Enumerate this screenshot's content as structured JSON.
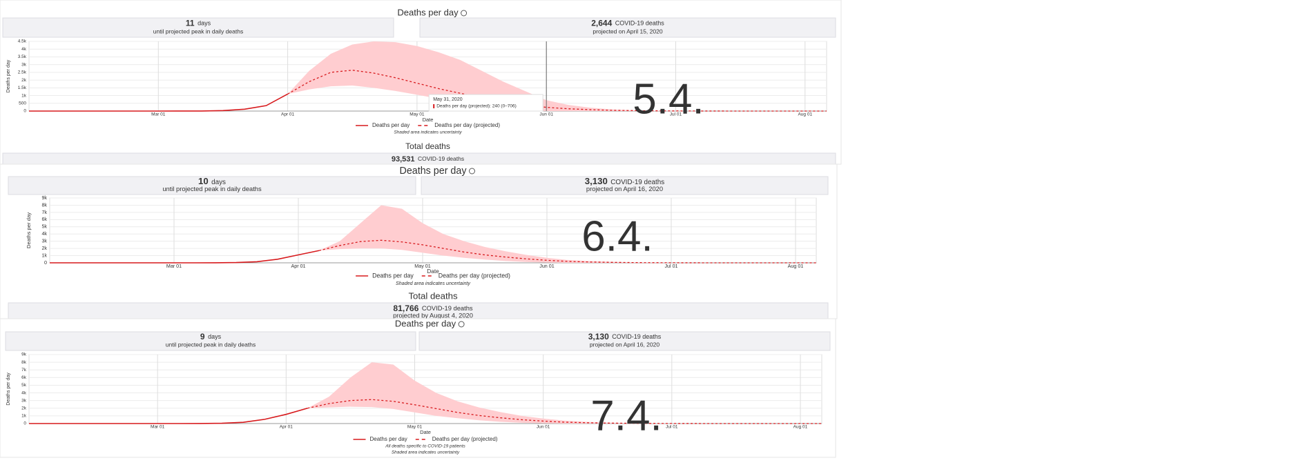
{
  "panels": [
    {
      "label": "5.4.",
      "title": "Deaths per day",
      "stats": [
        {
          "value": "11",
          "unit": "days",
          "caption": "until projected peak in daily deaths"
        },
        {
          "value": "2,644",
          "unit": "COVID-19 deaths",
          "caption": "projected on April 15, 2020"
        }
      ],
      "chart_data": {
        "type": "line",
        "y_label": "Deaths per day",
        "x_label": "Date",
        "categories": [
          null,
          null,
          null,
          null,
          null,
          null,
          "Mar 01",
          null,
          null,
          null,
          null,
          null,
          "Apr 01",
          null,
          null,
          null,
          null,
          null,
          "May 01",
          null,
          null,
          null,
          null,
          null,
          "Jun 01",
          null,
          null,
          null,
          null,
          null,
          "Jul 01",
          null,
          null,
          null,
          null,
          null,
          "Aug 01",
          null
        ],
        "series": [
          {
            "name": "Deaths per day",
            "color": "#d7191c",
            "style": "solid",
            "values": [
              0,
              0,
              0,
              0,
              0,
              0,
              0,
              1,
              4,
              30,
              120,
              350,
              1100,
              null,
              null,
              null,
              null,
              null,
              null,
              null,
              null,
              null,
              null,
              null,
              null,
              null,
              null,
              null,
              null,
              null,
              null,
              null,
              null,
              null,
              null,
              null,
              null,
              null
            ]
          },
          {
            "name": "Deaths per day (projected)",
            "color": "#d7191c",
            "style": "dashed",
            "values": [
              null,
              null,
              null,
              null,
              null,
              null,
              null,
              null,
              null,
              null,
              null,
              null,
              1100,
              1900,
              2500,
              2640,
              2450,
              2150,
              1800,
              1450,
              1150,
              850,
              600,
              400,
              240,
              150,
              90,
              50,
              30,
              15,
              8,
              4,
              2,
              1,
              0,
              0,
              0,
              0
            ]
          }
        ],
        "band": {
          "color": "#ffcdd0",
          "upper": [
            null,
            null,
            null,
            null,
            null,
            null,
            null,
            null,
            null,
            null,
            null,
            null,
            1100,
            2600,
            3700,
            4300,
            4500,
            4450,
            4200,
            3800,
            3300,
            2600,
            1900,
            1300,
            700,
            400,
            220,
            110,
            50,
            20,
            10,
            5,
            2,
            0,
            0,
            0,
            0,
            0
          ],
          "lower": [
            null,
            null,
            null,
            null,
            null,
            null,
            null,
            null,
            null,
            null,
            null,
            null,
            1100,
            1400,
            1600,
            1650,
            1500,
            1300,
            1050,
            800,
            550,
            350,
            200,
            80,
            0,
            0,
            0,
            0,
            0,
            0,
            0,
            0,
            0,
            0,
            0,
            0,
            0,
            0
          ]
        },
        "ylim": [
          0,
          4500
        ],
        "yticks": [
          0,
          500,
          {
            "value": 1000,
            "label": "1k"
          },
          {
            "value": 1500,
            "label": "1.5k"
          },
          {
            "value": 2000,
            "label": "2k"
          },
          {
            "value": 2500,
            "label": "2.5k"
          },
          {
            "value": 3000,
            "label": "3k"
          },
          {
            "value": 3500,
            "label": "3.5k"
          },
          {
            "value": 4000,
            "label": "4k"
          },
          {
            "value": 4500,
            "label": "4.5k"
          }
        ],
        "grid": true,
        "notes": [
          "Shaded area indicates uncertainty"
        ],
        "tooltip": {
          "title": "May 31, 2020",
          "text": "Deaths per day (projected):  240 (0–706)"
        }
      },
      "total": {
        "title": "Total deaths",
        "value": "93,531",
        "unit": "COVID-19 deaths"
      }
    },
    {
      "label": "6.4.",
      "title": "Deaths per day",
      "stats": [
        {
          "value": "10",
          "unit": "days",
          "caption": "until projected peak in daily deaths"
        },
        {
          "value": "3,130",
          "unit": "COVID-19 deaths",
          "caption": "projected on April 16, 2020"
        }
      ],
      "chart_data": {
        "type": "line",
        "y_label": "Deaths per day",
        "x_label": "Date",
        "categories": [
          null,
          null,
          null,
          null,
          null,
          null,
          "Mar 01",
          null,
          null,
          null,
          null,
          null,
          "Apr 01",
          null,
          null,
          null,
          null,
          null,
          "May 01",
          null,
          null,
          null,
          null,
          null,
          "Jun 01",
          null,
          null,
          null,
          null,
          null,
          "Jul 01",
          null,
          null,
          null,
          null,
          null,
          "Aug 01",
          null
        ],
        "series": [
          {
            "name": "Deaths per day",
            "color": "#d7191c",
            "style": "solid",
            "values": [
              0,
              0,
              0,
              0,
              0,
              0,
              0,
              1,
              5,
              40,
              150,
              500,
              1100,
              1700,
              null,
              null,
              null,
              null,
              null,
              null,
              null,
              null,
              null,
              null,
              null,
              null,
              null,
              null,
              null,
              null,
              null,
              null,
              null,
              null,
              null,
              null,
              null,
              null
            ]
          },
          {
            "name": "Deaths per day (projected)",
            "color": "#d7191c",
            "style": "dashed",
            "values": [
              null,
              null,
              null,
              null,
              null,
              null,
              null,
              null,
              null,
              null,
              null,
              null,
              null,
              1700,
              2400,
              2950,
              3130,
              2900,
              2500,
              2000,
              1500,
              1100,
              800,
              550,
              350,
              200,
              120,
              70,
              40,
              20,
              10,
              5,
              2,
              1,
              0,
              0,
              0,
              0
            ]
          }
        ],
        "band": {
          "color": "#ffcdd0",
          "upper": [
            null,
            null,
            null,
            null,
            null,
            null,
            null,
            null,
            null,
            null,
            null,
            null,
            null,
            1700,
            3000,
            5500,
            8000,
            7500,
            5500,
            4000,
            3000,
            2200,
            1600,
            1100,
            700,
            400,
            250,
            150,
            80,
            40,
            20,
            10,
            5,
            2,
            0,
            0,
            0,
            0
          ],
          "lower": [
            null,
            null,
            null,
            null,
            null,
            null,
            null,
            null,
            null,
            null,
            null,
            null,
            null,
            1700,
            1900,
            2000,
            2000,
            1800,
            1400,
            1000,
            700,
            450,
            250,
            120,
            40,
            0,
            0,
            0,
            0,
            0,
            0,
            0,
            0,
            0,
            0,
            0,
            0,
            0
          ]
        },
        "ylim": [
          0,
          9000
        ],
        "yticks": [
          0,
          {
            "value": 1000,
            "label": "1k"
          },
          {
            "value": 2000,
            "label": "2k"
          },
          {
            "value": 3000,
            "label": "3k"
          },
          {
            "value": 4000,
            "label": "4k"
          },
          {
            "value": 5000,
            "label": "5k"
          },
          {
            "value": 6000,
            "label": "6k"
          },
          {
            "value": 7000,
            "label": "7k"
          },
          {
            "value": 8000,
            "label": "8k"
          },
          {
            "value": 9000,
            "label": "9k"
          }
        ],
        "grid": true,
        "notes": [
          "Shaded area indicates uncertainty"
        ]
      },
      "total": {
        "title": "Total deaths",
        "value": "81,766",
        "unit": "COVID-19 deaths",
        "caption": "projected by August 4, 2020"
      }
    },
    {
      "label": "7.4.",
      "title": "Deaths per day",
      "stats": [
        {
          "value": "9",
          "unit": "days",
          "caption": "until projected peak in daily deaths"
        },
        {
          "value": "3,130",
          "unit": "COVID-19 deaths",
          "caption": "projected on April 16, 2020"
        }
      ],
      "chart_data": {
        "type": "line",
        "y_label": "Deaths per day",
        "x_label": "Date",
        "categories": [
          null,
          null,
          null,
          null,
          null,
          null,
          "Mar 01",
          null,
          null,
          null,
          null,
          null,
          "Apr 01",
          null,
          null,
          null,
          null,
          null,
          "May 01",
          null,
          null,
          null,
          null,
          null,
          "Jun 01",
          null,
          null,
          null,
          null,
          null,
          "Jul 01",
          null,
          null,
          null,
          null,
          null,
          "Aug 01",
          null
        ],
        "series": [
          {
            "name": "Deaths per day",
            "color": "#d7191c",
            "style": "solid",
            "values": [
              0,
              0,
              0,
              0,
              0,
              0,
              0,
              1,
              5,
              40,
              160,
              550,
              1200,
              2000,
              null,
              null,
              null,
              null,
              null,
              null,
              null,
              null,
              null,
              null,
              null,
              null,
              null,
              null,
              null,
              null,
              null,
              null,
              null,
              null,
              null,
              null,
              null,
              null
            ]
          },
          {
            "name": "Deaths per day (projected)",
            "color": "#d7191c",
            "style": "dashed",
            "values": [
              null,
              null,
              null,
              null,
              null,
              null,
              null,
              null,
              null,
              null,
              null,
              null,
              null,
              2000,
              2600,
              3000,
              3130,
              2900,
              2450,
              1950,
              1450,
              1050,
              750,
              500,
              320,
              180,
              110,
              60,
              35,
              18,
              9,
              4,
              2,
              1,
              0,
              0,
              0,
              0
            ]
          }
        ],
        "band": {
          "color": "#ffcdd0",
          "upper": [
            null,
            null,
            null,
            null,
            null,
            null,
            null,
            null,
            null,
            null,
            null,
            null,
            null,
            2000,
            3500,
            6000,
            8000,
            7700,
            5600,
            4000,
            2900,
            2100,
            1500,
            1000,
            650,
            380,
            230,
            130,
            70,
            35,
            18,
            9,
            4,
            2,
            0,
            0,
            0,
            0
          ],
          "lower": [
            null,
            null,
            null,
            null,
            null,
            null,
            null,
            null,
            null,
            null,
            null,
            null,
            null,
            2000,
            2100,
            2200,
            2150,
            1900,
            1450,
            1000,
            700,
            430,
            230,
            100,
            30,
            0,
            0,
            0,
            0,
            0,
            0,
            0,
            0,
            0,
            0,
            0,
            0,
            0
          ]
        },
        "ylim": [
          0,
          9000
        ],
        "yticks": [
          0,
          {
            "value": 1000,
            "label": "1k"
          },
          {
            "value": 2000,
            "label": "2k"
          },
          {
            "value": 3000,
            "label": "3k"
          },
          {
            "value": 4000,
            "label": "4k"
          },
          {
            "value": 5000,
            "label": "5k"
          },
          {
            "value": 6000,
            "label": "6k"
          },
          {
            "value": 7000,
            "label": "7k"
          },
          {
            "value": 8000,
            "label": "8k"
          },
          {
            "value": 9000,
            "label": "9k"
          }
        ],
        "grid": true,
        "notes": [
          "All deaths specific to COVID-19 patients",
          "Shaded area indicates uncertainty"
        ]
      }
    }
  ]
}
